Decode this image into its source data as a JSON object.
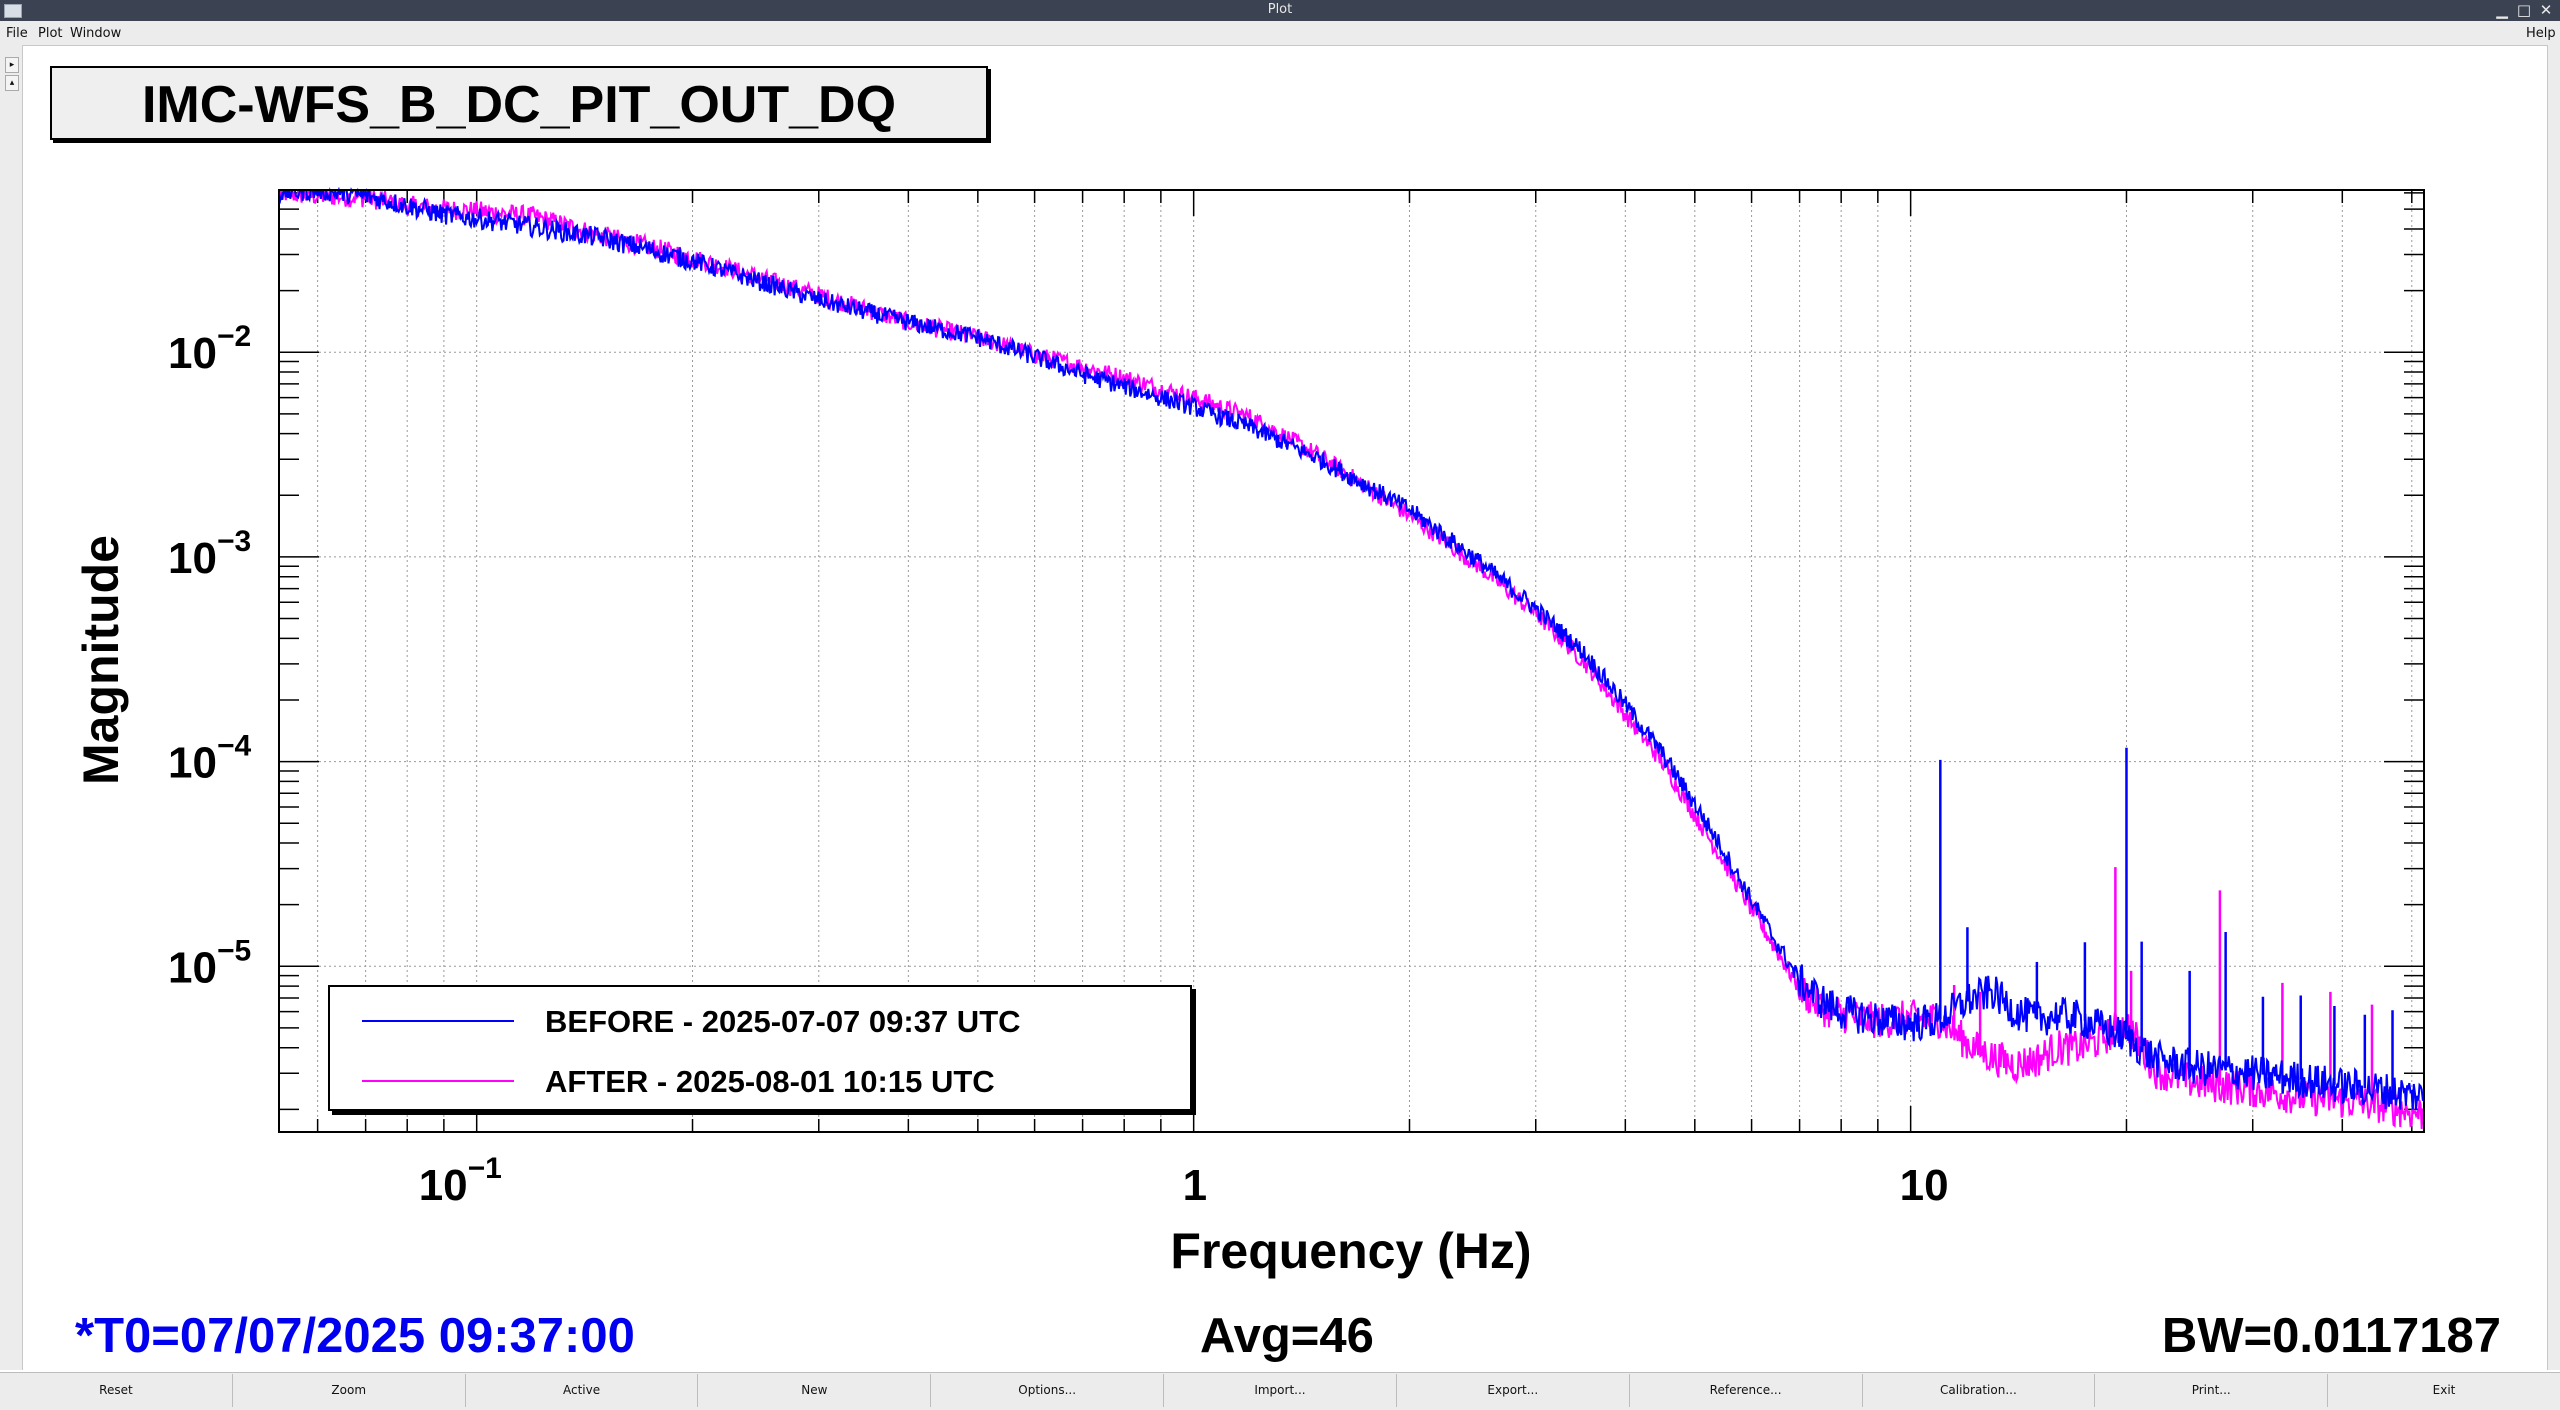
{
  "window": {
    "title": "Plot",
    "app_icon": "window-icon",
    "controls": [
      "minimize-icon",
      "maximize-icon",
      "close-icon"
    ]
  },
  "menubar": {
    "items": [
      "File",
      "Plot",
      "Window"
    ],
    "help": "Help"
  },
  "plot": {
    "title": "IMC-WFS_B_DC_PIT_OUT_DQ"
  },
  "chart_data": {
    "type": "line",
    "title": "IMC-WFS_B_DC_PIT_OUT_DQ",
    "xlabel": "Frequency (Hz)",
    "ylabel": "Magnitude",
    "xscale": "log",
    "yscale": "log",
    "xlim": [
      0.053,
      52
    ],
    "ylim": [
      1.55e-06,
      0.062
    ],
    "grid": true,
    "x_ticks": [
      {
        "value": 0.1,
        "base": "10",
        "exp": "−1"
      },
      {
        "value": 1,
        "base": "1",
        "exp": ""
      },
      {
        "value": 10,
        "base": "10",
        "exp": ""
      }
    ],
    "y_ticks": [
      {
        "value": 0.01,
        "base": "10",
        "exp": "−2"
      },
      {
        "value": 0.001,
        "base": "10",
        "exp": "−3"
      },
      {
        "value": 0.0001,
        "base": "10",
        "exp": "−4"
      },
      {
        "value": 1e-05,
        "base": "10",
        "exp": "−5"
      }
    ],
    "legend_position": "bottom-left",
    "series": [
      {
        "name": "BEFORE - 2025-07-07 09:37 UTC",
        "color": "#0000ff",
        "x": [
          0.053,
          0.06,
          0.07,
          0.08,
          0.09,
          0.1,
          0.12,
          0.15,
          0.2,
          0.3,
          0.4,
          0.5,
          0.6,
          0.7,
          0.8,
          0.9,
          1.0,
          1.2,
          1.5,
          2.0,
          2.5,
          3.0,
          3.5,
          4.0,
          4.5,
          5.0,
          5.5,
          6.0,
          6.5,
          7.0,
          7.5,
          8.0,
          9.0,
          10.0,
          11.0,
          12.0,
          13.0,
          14.0,
          15.0,
          16.0,
          17.0,
          18.0,
          20.0,
          22.0,
          25.0,
          30.0,
          35.0,
          40.0,
          45.0,
          52.0
        ],
        "y": [
          0.06,
          0.062,
          0.058,
          0.052,
          0.047,
          0.045,
          0.041,
          0.036,
          0.028,
          0.018,
          0.014,
          0.0118,
          0.0095,
          0.0078,
          0.0068,
          0.006,
          0.0054,
          0.0043,
          0.003,
          0.0017,
          0.00095,
          0.00056,
          0.00034,
          0.00019,
          0.00011,
          6.2e-05,
          3.6e-05,
          2.1e-05,
          1.3e-05,
          8.5e-06,
          6.8e-06,
          6e-06,
          5.5e-06,
          5.2e-06,
          5.5e-06,
          6.8e-06,
          7.5e-06,
          6e-06,
          5.5e-06,
          5.8e-06,
          5.6e-06,
          5.2e-06,
          4.5e-06,
          3.5e-06,
          3.2e-06,
          3e-06,
          2.8e-06,
          2.6e-06,
          2.5e-06,
          2.3e-06
        ],
        "peaks": [
          {
            "x": 11.0,
            "y": 0.000102
          },
          {
            "x": 12.0,
            "y": 1.55e-05
          },
          {
            "x": 15.0,
            "y": 1.05e-05
          },
          {
            "x": 17.5,
            "y": 1.31e-05
          },
          {
            "x": 20.0,
            "y": 0.0001168
          },
          {
            "x": 21.0,
            "y": 1.32e-05
          },
          {
            "x": 24.5,
            "y": 9.5e-06
          },
          {
            "x": 27.5,
            "y": 1.47e-05
          },
          {
            "x": 31.0,
            "y": 7.1e-06
          },
          {
            "x": 35.0,
            "y": 7.2e-06
          },
          {
            "x": 39.0,
            "y": 6.4e-06
          },
          {
            "x": 43.0,
            "y": 5.8e-06
          },
          {
            "x": 47.0,
            "y": 6.1e-06
          }
        ]
      },
      {
        "name": "AFTER - 2025-08-01 10:15 UTC",
        "color": "#ff00ff",
        "x": [
          0.053,
          0.06,
          0.07,
          0.08,
          0.09,
          0.1,
          0.12,
          0.15,
          0.2,
          0.3,
          0.4,
          0.5,
          0.6,
          0.7,
          0.8,
          0.9,
          1.0,
          1.2,
          1.5,
          2.0,
          2.5,
          3.0,
          3.5,
          4.0,
          4.5,
          5.0,
          5.5,
          6.0,
          6.5,
          7.0,
          7.5,
          8.0,
          9.0,
          10.0,
          11.0,
          12.0,
          13.0,
          14.0,
          15.0,
          16.0,
          17.0,
          18.0,
          20.0,
          22.0,
          25.0,
          30.0,
          35.0,
          40.0,
          45.0,
          52.0
        ],
        "y": [
          0.06,
          0.058,
          0.057,
          0.052,
          0.05,
          0.049,
          0.046,
          0.037,
          0.029,
          0.019,
          0.014,
          0.0118,
          0.0097,
          0.0085,
          0.0075,
          0.0066,
          0.006,
          0.0048,
          0.0031,
          0.0016,
          0.0009,
          0.00053,
          0.00031,
          0.00017,
          0.0001,
          5.5e-05,
          3.2e-05,
          1.9e-05,
          1.2e-05,
          7.8e-06,
          6.3e-06,
          5.8e-06,
          5.4e-06,
          5.6e-06,
          5.5e-06,
          4.2e-06,
          3.6e-06,
          3.3e-06,
          3.5e-06,
          4e-06,
          4e-06,
          4.2e-06,
          5.2e-06,
          3.1e-06,
          2.7e-06,
          2.5e-06,
          2.3e-06,
          2.2e-06,
          2.1e-06,
          1.9e-06
        ],
        "peaks": [
          {
            "x": 11.5,
            "y": 8.1e-06
          },
          {
            "x": 12.5,
            "y": 7.5e-06
          },
          {
            "x": 19.3,
            "y": 3.05e-05
          },
          {
            "x": 20.3,
            "y": 9.5e-06
          },
          {
            "x": 27.0,
            "y": 2.35e-05
          },
          {
            "x": 33.0,
            "y": 8.3e-06
          },
          {
            "x": 38.5,
            "y": 7.5e-06
          },
          {
            "x": 44.0,
            "y": 6.5e-06
          }
        ]
      }
    ]
  },
  "status": {
    "t0": "*T0=07/07/2025 09:37:00",
    "avg": "Avg=46",
    "bw": "BW=0.0117187"
  },
  "buttons": [
    "Reset",
    "Zoom",
    "Active",
    "New",
    "Options...",
    "Import...",
    "Export...",
    "Reference...",
    "Calibration...",
    "Print...",
    "Exit"
  ]
}
